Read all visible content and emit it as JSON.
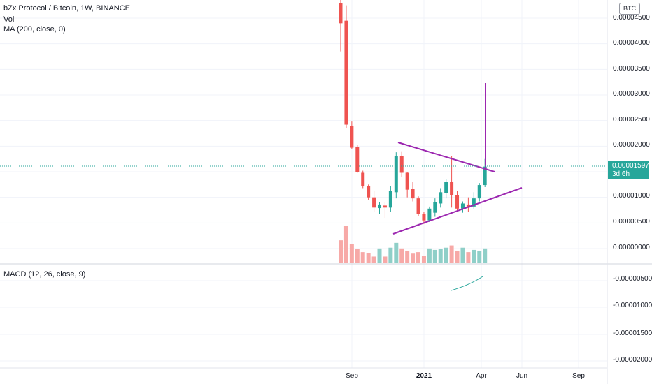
{
  "header": {
    "title": "bZx Protocol / Bitcoin, 1W, BINANCE",
    "vol_label": "Vol",
    "ma_label": "MA (200, close, 0)",
    "currency_badge": "BTC"
  },
  "price_tag": {
    "value": "0.00001597",
    "countdown": "3d 6h"
  },
  "macd": {
    "label": "MACD (12, 26, close, 9)"
  },
  "colors": {
    "up": "#26a69a",
    "down": "#ef5350",
    "vol_up": "#8fcfc8",
    "vol_down": "#f7a9a7",
    "trendline": "#9c27b0",
    "macd_line": "#26a69a"
  },
  "y_axis_labels": [
    "0.00004500",
    "0.00004000",
    "0.00003500",
    "0.00003000",
    "0.00002500",
    "0.00002000",
    "0.00001500",
    "0.00001000",
    "0.00000500",
    "0.00000000"
  ],
  "macd_axis_labels": [
    "-0.00000500",
    "-0.00001000",
    "-0.00001500",
    "-0.00002000"
  ],
  "x_axis_labels": [
    {
      "text": "Sep",
      "bold": false
    },
    {
      "text": "2021",
      "bold": true
    },
    {
      "text": "Apr",
      "bold": false
    },
    {
      "text": "Jun",
      "bold": false
    },
    {
      "text": "Sep",
      "bold": false
    }
  ],
  "chart_data": {
    "type": "candlestick",
    "title": "bZx Protocol / Bitcoin, 1W, BINANCE",
    "ylim": [
      0,
      4.8e-05
    ],
    "ohlc": [
      {
        "o": 4.79e-05,
        "h": 4.89e-05,
        "l": 3.85e-05,
        "c": 4.4e-05
      },
      {
        "o": 4.45e-05,
        "h": 4.75e-05,
        "l": 2.35e-05,
        "c": 2.42e-05
      },
      {
        "o": 2.4e-05,
        "h": 2.48e-05,
        "l": 1.95e-05,
        "c": 1.97e-05
      },
      {
        "o": 1.98e-05,
        "h": 2.02e-05,
        "l": 1.48e-05,
        "c": 1.5e-05
      },
      {
        "o": 1.48e-05,
        "h": 1.52e-05,
        "l": 1.18e-05,
        "c": 1.22e-05
      },
      {
        "o": 1.22e-05,
        "h": 1.25e-05,
        "l": 9.5e-06,
        "c": 1e-05
      },
      {
        "o": 1e-05,
        "h": 1.12e-05,
        "l": 7.2e-06,
        "c": 8e-06
      },
      {
        "o": 7.9e-06,
        "h": 9.1e-06,
        "l": 6.8e-06,
        "c": 8.6e-06
      },
      {
        "o": 8.4e-06,
        "h": 9e-06,
        "l": 6e-06,
        "c": 8e-06
      },
      {
        "o": 8e-06,
        "h": 1.22e-05,
        "l": 7.2e-06,
        "c": 1.13e-05
      },
      {
        "o": 1.1e-05,
        "h": 1.88e-05,
        "l": 9.8e-06,
        "c": 1.8e-05
      },
      {
        "o": 1.81e-05,
        "h": 1.9e-05,
        "l": 1.4e-05,
        "c": 1.48e-05
      },
      {
        "o": 1.48e-05,
        "h": 1.5e-05,
        "l": 1e-05,
        "c": 1.15e-05
      },
      {
        "o": 1.16e-05,
        "h": 1.3e-05,
        "l": 9.2e-06,
        "c": 9.8e-06
      },
      {
        "o": 9.8e-06,
        "h": 1.02e-05,
        "l": 6.3e-06,
        "c": 6.8e-06
      },
      {
        "o": 6.8e-06,
        "h": 7.2e-06,
        "l": 4.8e-06,
        "c": 5.5e-06
      },
      {
        "o": 5.5e-06,
        "h": 8.2e-06,
        "l": 5.2e-06,
        "c": 7.8e-06
      },
      {
        "o": 7e-06,
        "h": 9.8e-06,
        "l": 6.2e-06,
        "c": 9e-06
      },
      {
        "o": 8.8e-06,
        "h": 1.18e-05,
        "l": 8e-06,
        "c": 1.1e-05
      },
      {
        "o": 1.08e-05,
        "h": 1.35e-05,
        "l": 9.8e-06,
        "c": 1.3e-05
      },
      {
        "o": 1.3e-05,
        "h": 1.8e-05,
        "l": 8e-06,
        "c": 1.05e-05
      },
      {
        "o": 1.05e-05,
        "h": 1.12e-05,
        "l": 7.2e-06,
        "c": 7.8e-06
      },
      {
        "o": 7.8e-06,
        "h": 9.2e-06,
        "l": 7e-06,
        "c": 8.8e-06
      },
      {
        "o": 8.6e-06,
        "h": 1e-05,
        "l": 7.2e-06,
        "c": 8e-06
      },
      {
        "o": 8.2e-06,
        "h": 1.1e-05,
        "l": 7.8e-06,
        "c": 9.8e-06
      },
      {
        "o": 9.8e-06,
        "h": 1.28e-05,
        "l": 9.2e-06,
        "c": 1.24e-05
      },
      {
        "o": 1.24e-05,
        "h": 1.75e-05,
        "l": 1.2e-05,
        "c": 1.6e-05
      }
    ],
    "volume": [
      {
        "v": 0.62,
        "up": false
      },
      {
        "v": 1.0,
        "up": false
      },
      {
        "v": 0.52,
        "up": false
      },
      {
        "v": 0.38,
        "up": false
      },
      {
        "v": 0.3,
        "up": false
      },
      {
        "v": 0.27,
        "up": false
      },
      {
        "v": 0.18,
        "up": false
      },
      {
        "v": 0.4,
        "up": true
      },
      {
        "v": 0.18,
        "up": false
      },
      {
        "v": 0.42,
        "up": true
      },
      {
        "v": 0.55,
        "up": true
      },
      {
        "v": 0.4,
        "up": false
      },
      {
        "v": 0.34,
        "up": false
      },
      {
        "v": 0.26,
        "up": false
      },
      {
        "v": 0.3,
        "up": false
      },
      {
        "v": 0.2,
        "up": false
      },
      {
        "v": 0.4,
        "up": true
      },
      {
        "v": 0.36,
        "up": true
      },
      {
        "v": 0.38,
        "up": true
      },
      {
        "v": 0.42,
        "up": true
      },
      {
        "v": 0.48,
        "up": false
      },
      {
        "v": 0.34,
        "up": false
      },
      {
        "v": 0.42,
        "up": true
      },
      {
        "v": 0.3,
        "up": false
      },
      {
        "v": 0.36,
        "up": true
      },
      {
        "v": 0.34,
        "up": true
      },
      {
        "v": 0.4,
        "up": true
      }
    ],
    "last_price": 1.597e-05
  }
}
